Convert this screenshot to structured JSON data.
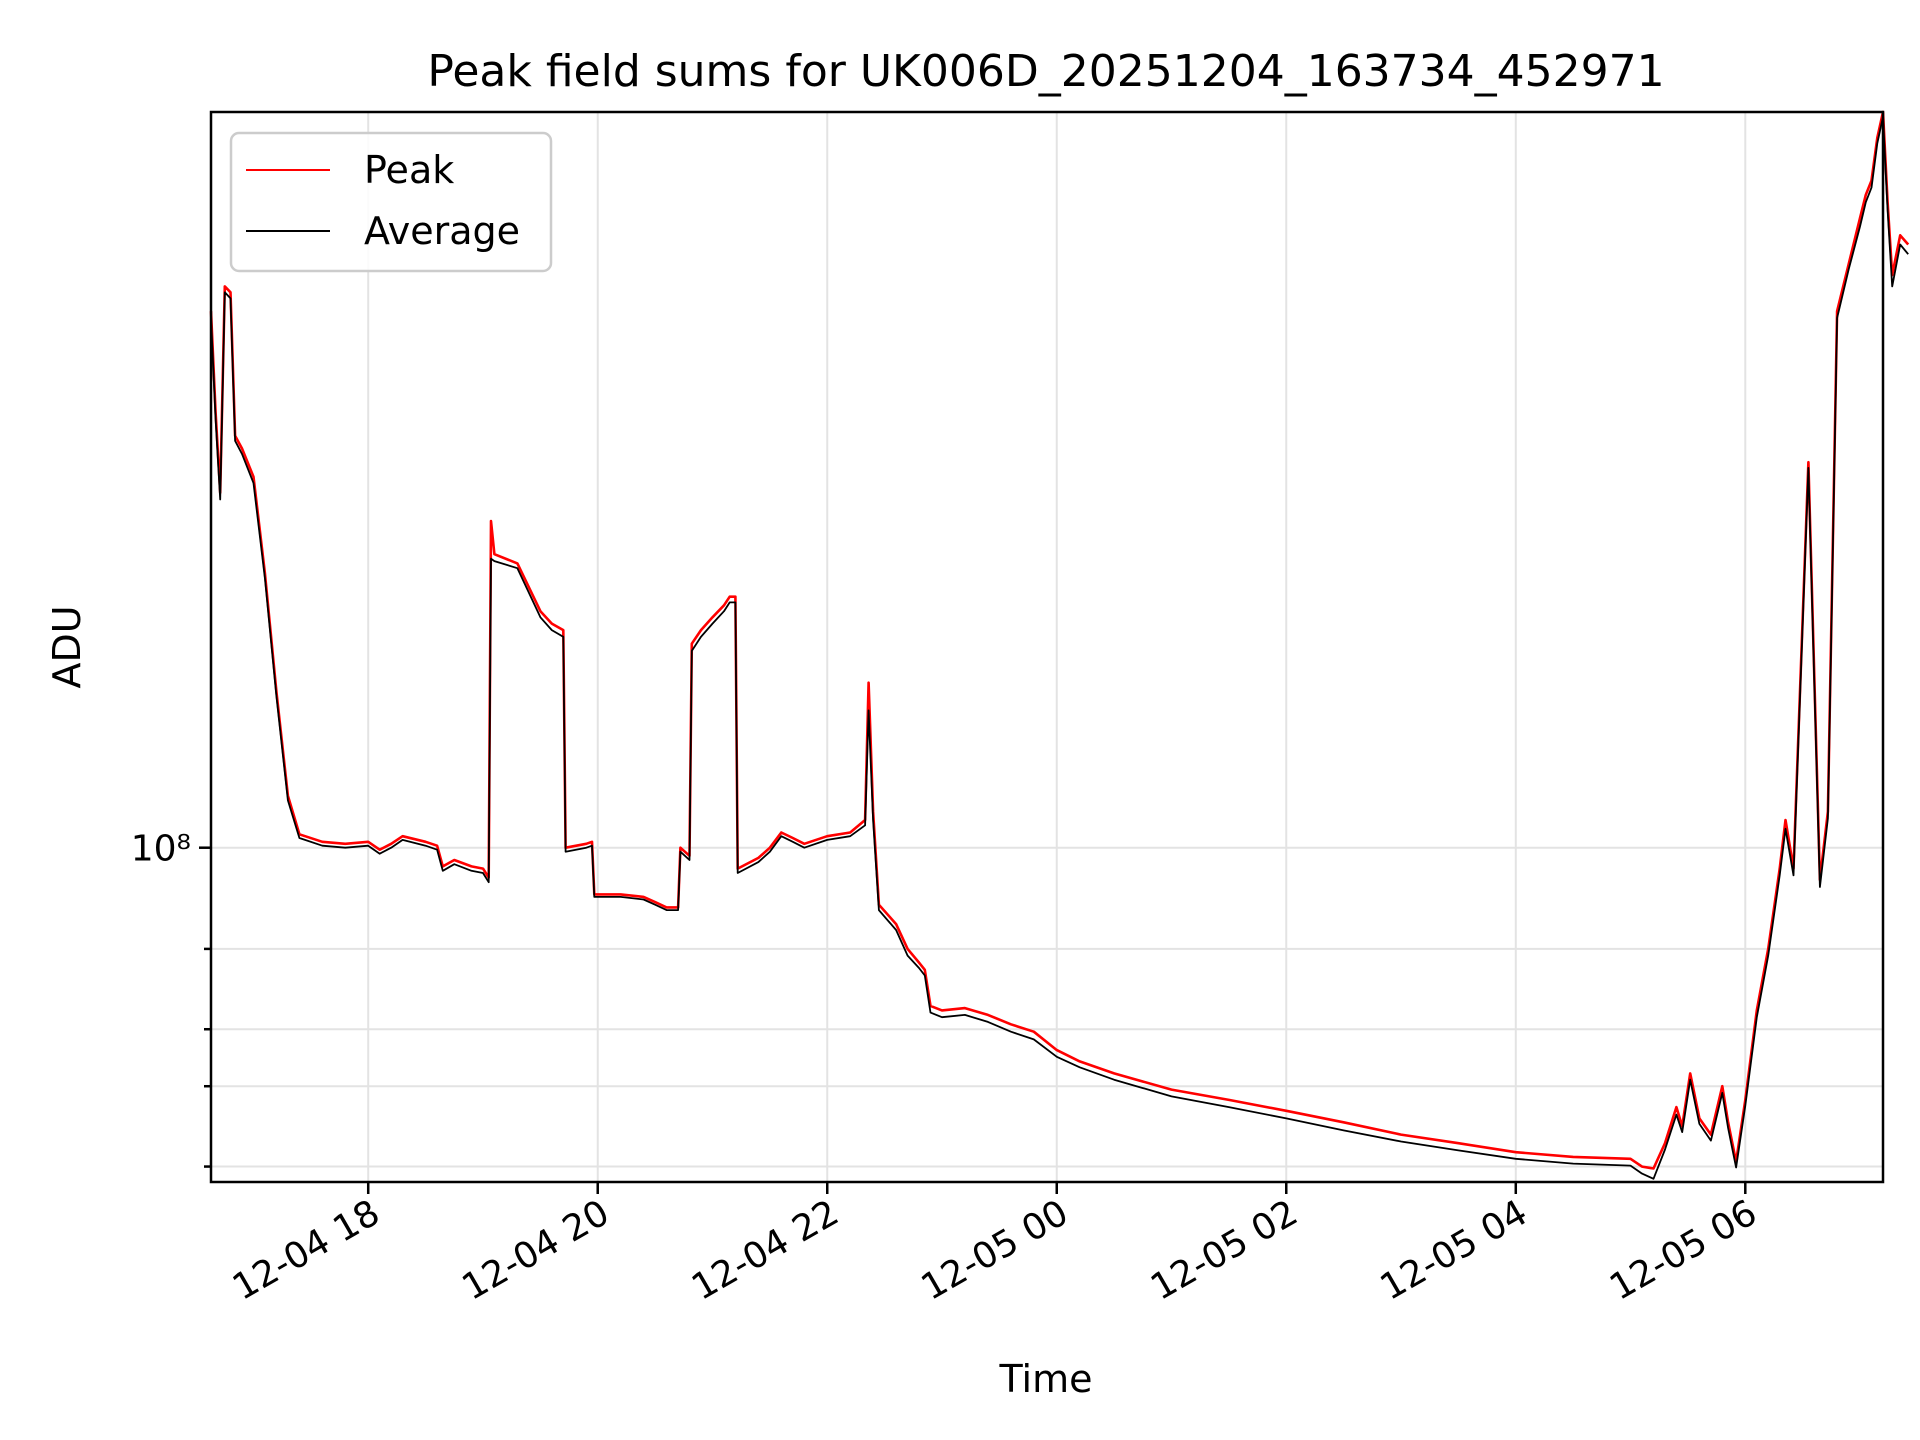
{
  "chart_data": {
    "type": "line",
    "title": "Peak field sums for UK006D_20251204_163734_452971",
    "xlabel": "Time",
    "ylabel": "ADU",
    "yscale": "log",
    "grid": true,
    "legend_position": "top-left",
    "x_ticks": [
      "12-04 18",
      "12-04 20",
      "12-04 22",
      "12-05 00",
      "12-05 02",
      "12-05 04",
      "12-05 06"
    ],
    "x_tick_hours": [
      18,
      20,
      22,
      24,
      26,
      28,
      30
    ],
    "x_range_hours": [
      16.63,
      31.2
    ],
    "y_ticks_major": [
      {
        "value": 100000000,
        "label": "10⁸"
      }
    ],
    "y_ticks_minor": [
      20000000,
      30000000,
      40000000,
      60000000
    ],
    "ylim": [
      18500000,
      4100000000
    ],
    "series": [
      {
        "name": "Peak",
        "color": "#ff0000",
        "points": [
          [
            16.63,
            1500000000
          ],
          [
            16.67,
            900000000
          ],
          [
            16.71,
            600000000
          ],
          [
            16.75,
            1700000000
          ],
          [
            16.8,
            1650000000
          ],
          [
            16.84,
            800000000
          ],
          [
            16.9,
            750000000
          ],
          [
            17.0,
            650000000
          ],
          [
            17.1,
            400000000
          ],
          [
            17.2,
            220000000
          ],
          [
            17.3,
            130000000
          ],
          [
            17.4,
            107000000
          ],
          [
            17.6,
            103000000
          ],
          [
            17.8,
            102000000
          ],
          [
            18.0,
            103000000
          ],
          [
            18.1,
            99000000
          ],
          [
            18.2,
            102000000
          ],
          [
            18.3,
            106000000
          ],
          [
            18.5,
            103000000
          ],
          [
            18.6,
            101000000
          ],
          [
            18.65,
            91000000
          ],
          [
            18.75,
            94000000
          ],
          [
            18.9,
            91000000
          ],
          [
            19.0,
            90000000
          ],
          [
            19.05,
            86000000
          ],
          [
            19.07,
            520000000
          ],
          [
            19.1,
            440000000
          ],
          [
            19.3,
            420000000
          ],
          [
            19.5,
            330000000
          ],
          [
            19.6,
            310000000
          ],
          [
            19.7,
            300000000
          ],
          [
            19.72,
            100000000
          ],
          [
            19.9,
            102000000
          ],
          [
            19.95,
            103000000
          ],
          [
            19.97,
            79000000
          ],
          [
            20.2,
            79000000
          ],
          [
            20.4,
            78000000
          ],
          [
            20.5,
            76000000
          ],
          [
            20.6,
            74000000
          ],
          [
            20.7,
            74000000
          ],
          [
            20.72,
            100000000
          ],
          [
            20.8,
            96000000
          ],
          [
            20.82,
            280000000
          ],
          [
            20.9,
            300000000
          ],
          [
            21.0,
            320000000
          ],
          [
            21.1,
            340000000
          ],
          [
            21.15,
            355000000
          ],
          [
            21.2,
            355000000
          ],
          [
            21.22,
            90000000
          ],
          [
            21.4,
            95000000
          ],
          [
            21.5,
            100000000
          ],
          [
            21.6,
            108000000
          ],
          [
            21.7,
            105000000
          ],
          [
            21.8,
            102000000
          ],
          [
            22.0,
            106000000
          ],
          [
            22.2,
            108000000
          ],
          [
            22.33,
            115000000
          ],
          [
            22.36,
            230000000
          ],
          [
            22.4,
            120000000
          ],
          [
            22.45,
            75000000
          ],
          [
            22.6,
            68000000
          ],
          [
            22.7,
            60000000
          ],
          [
            22.8,
            56000000
          ],
          [
            22.85,
            54000000
          ],
          [
            22.9,
            45000000
          ],
          [
            23.0,
            44000000
          ],
          [
            23.2,
            44500000
          ],
          [
            23.4,
            43000000
          ],
          [
            23.6,
            41000000
          ],
          [
            23.8,
            39500000
          ],
          [
            24.0,
            36000000
          ],
          [
            24.2,
            34000000
          ],
          [
            24.5,
            32000000
          ],
          [
            25.0,
            29500000
          ],
          [
            25.5,
            28000000
          ],
          [
            26.0,
            26500000
          ],
          [
            26.5,
            25000000
          ],
          [
            27.0,
            23500000
          ],
          [
            27.5,
            22500000
          ],
          [
            28.0,
            21500000
          ],
          [
            28.5,
            21000000
          ],
          [
            29.0,
            20800000
          ],
          [
            29.1,
            20000000
          ],
          [
            29.2,
            19800000
          ],
          [
            29.3,
            22500000
          ],
          [
            29.4,
            27000000
          ],
          [
            29.45,
            24500000
          ],
          [
            29.52,
            32000000
          ],
          [
            29.6,
            25500000
          ],
          [
            29.7,
            23500000
          ],
          [
            29.8,
            30000000
          ],
          [
            29.85,
            25000000
          ],
          [
            29.92,
            20500000
          ],
          [
            30.0,
            28000000
          ],
          [
            30.1,
            44000000
          ],
          [
            30.2,
            60000000
          ],
          [
            30.3,
            90000000
          ],
          [
            30.35,
            115000000
          ],
          [
            30.42,
            90000000
          ],
          [
            30.55,
            700000000
          ],
          [
            30.65,
            85000000
          ],
          [
            30.72,
            120000000
          ],
          [
            30.8,
            1500000000
          ],
          [
            30.9,
            1900000000
          ],
          [
            31.0,
            2400000000
          ],
          [
            31.05,
            2700000000
          ],
          [
            31.1,
            2900000000
          ],
          [
            31.15,
            3600000000
          ],
          [
            31.2,
            4100000000
          ],
          [
            31.24,
            2600000000
          ],
          [
            31.28,
            1800000000
          ],
          [
            31.35,
            2200000000
          ],
          [
            31.42,
            2100000000
          ]
        ]
      },
      {
        "name": "Average",
        "color": "#000000",
        "points": [
          [
            16.63,
            1450000000
          ],
          [
            16.67,
            870000000
          ],
          [
            16.71,
            580000000
          ],
          [
            16.75,
            1650000000
          ],
          [
            16.8,
            1600000000
          ],
          [
            16.84,
            780000000
          ],
          [
            16.9,
            730000000
          ],
          [
            17.0,
            630000000
          ],
          [
            17.1,
            390000000
          ],
          [
            17.2,
            215000000
          ],
          [
            17.3,
            127000000
          ],
          [
            17.4,
            105000000
          ],
          [
            17.6,
            101000000
          ],
          [
            17.8,
            100000000
          ],
          [
            18.0,
            101000000
          ],
          [
            18.1,
            97000000
          ],
          [
            18.2,
            100000000
          ],
          [
            18.3,
            104000000
          ],
          [
            18.5,
            101000000
          ],
          [
            18.6,
            99000000
          ],
          [
            18.65,
            89000000
          ],
          [
            18.75,
            92000000
          ],
          [
            18.9,
            89000000
          ],
          [
            19.0,
            88000000
          ],
          [
            19.05,
            84000000
          ],
          [
            19.07,
            430000000
          ],
          [
            19.1,
            425000000
          ],
          [
            19.3,
            410000000
          ],
          [
            19.5,
            320000000
          ],
          [
            19.6,
            300000000
          ],
          [
            19.7,
            290000000
          ],
          [
            19.72,
            98000000
          ],
          [
            19.9,
            100000000
          ],
          [
            19.95,
            101000000
          ],
          [
            19.97,
            78000000
          ],
          [
            20.2,
            78000000
          ],
          [
            20.4,
            77000000
          ],
          [
            20.5,
            75000000
          ],
          [
            20.6,
            73000000
          ],
          [
            20.7,
            73000000
          ],
          [
            20.72,
            98000000
          ],
          [
            20.8,
            94000000
          ],
          [
            20.82,
            270000000
          ],
          [
            20.9,
            290000000
          ],
          [
            21.0,
            310000000
          ],
          [
            21.1,
            330000000
          ],
          [
            21.15,
            345000000
          ],
          [
            21.2,
            345000000
          ],
          [
            21.22,
            88000000
          ],
          [
            21.4,
            93000000
          ],
          [
            21.5,
            98000000
          ],
          [
            21.6,
            106000000
          ],
          [
            21.7,
            103000000
          ],
          [
            21.8,
            100000000
          ],
          [
            22.0,
            104000000
          ],
          [
            22.2,
            106000000
          ],
          [
            22.33,
            112000000
          ],
          [
            22.36,
            200000000
          ],
          [
            22.4,
            115000000
          ],
          [
            22.45,
            73000000
          ],
          [
            22.6,
            66000000
          ],
          [
            22.7,
            58000000
          ],
          [
            22.8,
            54500000
          ],
          [
            22.85,
            52500000
          ],
          [
            22.9,
            43500000
          ],
          [
            23.0,
            42500000
          ],
          [
            23.2,
            43000000
          ],
          [
            23.4,
            41500000
          ],
          [
            23.6,
            39500000
          ],
          [
            23.8,
            38000000
          ],
          [
            24.0,
            34800000
          ],
          [
            24.2,
            33000000
          ],
          [
            24.5,
            31000000
          ],
          [
            25.0,
            28500000
          ],
          [
            25.5,
            27000000
          ],
          [
            26.0,
            25500000
          ],
          [
            26.5,
            24000000
          ],
          [
            27.0,
            22700000
          ],
          [
            27.5,
            21700000
          ],
          [
            28.0,
            20800000
          ],
          [
            28.5,
            20300000
          ],
          [
            29.0,
            20100000
          ],
          [
            29.1,
            19300000
          ],
          [
            29.2,
            18800000
          ],
          [
            29.3,
            21800000
          ],
          [
            29.4,
            26000000
          ],
          [
            29.45,
            23800000
          ],
          [
            29.52,
            31000000
          ],
          [
            29.6,
            24800000
          ],
          [
            29.7,
            22800000
          ],
          [
            29.8,
            29000000
          ],
          [
            29.85,
            24300000
          ],
          [
            29.92,
            19900000
          ],
          [
            30.0,
            27200000
          ],
          [
            30.1,
            42500000
          ],
          [
            30.2,
            58000000
          ],
          [
            30.3,
            87000000
          ],
          [
            30.35,
            110000000
          ],
          [
            30.42,
            87000000
          ],
          [
            30.55,
            680000000
          ],
          [
            30.65,
            82000000
          ],
          [
            30.72,
            116000000
          ],
          [
            30.8,
            1450000000
          ],
          [
            30.9,
            1850000000
          ],
          [
            31.0,
            2300000000
          ],
          [
            31.05,
            2600000000
          ],
          [
            31.1,
            2800000000
          ],
          [
            31.15,
            3500000000
          ],
          [
            31.2,
            4000000000
          ],
          [
            31.24,
            2500000000
          ],
          [
            31.28,
            1700000000
          ],
          [
            31.35,
            2100000000
          ],
          [
            31.42,
            2000000000
          ]
        ]
      }
    ]
  }
}
